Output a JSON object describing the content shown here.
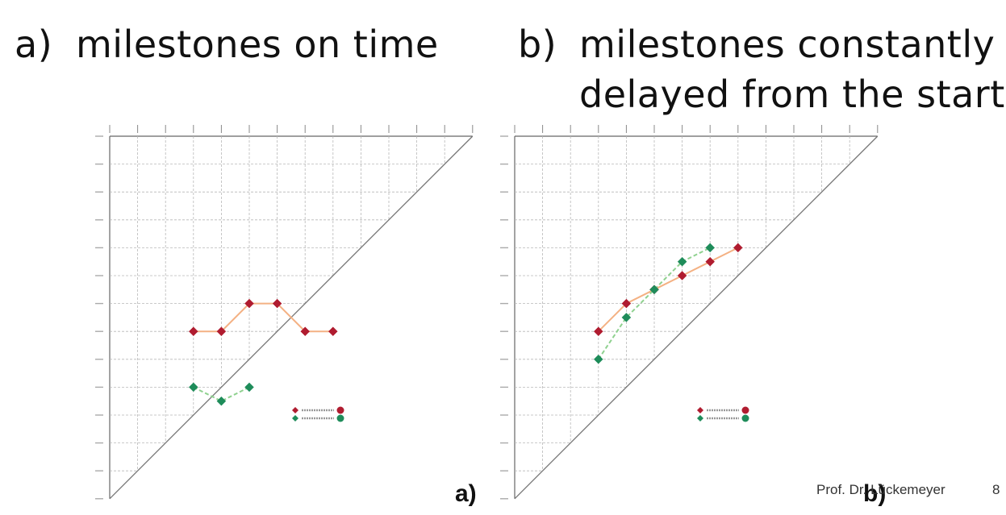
{
  "headings": {
    "a": {
      "label": "a)",
      "text": "milestones on time"
    },
    "b": {
      "label": "b)",
      "line1": "milestones constantly",
      "line2": "delayed from the start"
    }
  },
  "footer": {
    "author": "Prof. Dr. Lückemeyer",
    "page": "8"
  },
  "colors": {
    "milestone1": "#b01c30",
    "milestone1_line": "#f4b183",
    "milestone2": "#1e8c5a",
    "milestone2_line": "#8fd18f",
    "grid": "#b8b8b8",
    "diagonal": "#777777"
  },
  "chart_data": [
    {
      "type": "line",
      "panel_label": "a)",
      "chart_kind": "milestone trend analysis",
      "x": [
        1,
        2,
        3,
        4,
        5,
        6,
        7,
        8,
        9,
        10,
        11,
        12,
        13
      ],
      "y_levels": [
        1,
        2,
        3,
        4,
        5,
        6,
        7,
        8,
        9,
        10,
        11,
        12,
        13
      ],
      "series": [
        {
          "points": [
            [
              3,
              7
            ],
            [
              4,
              7
            ],
            [
              5,
              6
            ],
            [
              6,
              6
            ],
            [
              7,
              7
            ],
            [
              8,
              7
            ]
          ],
          "color": "milestone1",
          "marker": "diamond"
        },
        {
          "points": [
            [
              3,
              9
            ],
            [
              4,
              9.5
            ],
            [
              5,
              9
            ]
          ],
          "color": "milestone2",
          "marker": "diamond"
        }
      ],
      "grid": true,
      "legend_placement": "lower-right"
    },
    {
      "type": "line",
      "panel_label": "b)",
      "chart_kind": "milestone trend analysis",
      "x": [
        1,
        2,
        3,
        4,
        5,
        6,
        7,
        8,
        9,
        10,
        11,
        12,
        13
      ],
      "y_levels": [
        1,
        2,
        3,
        4,
        5,
        6,
        7,
        8,
        9,
        10,
        11,
        12,
        13
      ],
      "series": [
        {
          "points": [
            [
              3,
              7
            ],
            [
              4,
              6
            ],
            [
              5,
              5.5
            ],
            [
              6,
              5
            ],
            [
              7,
              4.5
            ],
            [
              8,
              4
            ]
          ],
          "color": "milestone1",
          "marker": "diamond"
        },
        {
          "points": [
            [
              3,
              8
            ],
            [
              4,
              6.5
            ],
            [
              5,
              5.5
            ],
            [
              6,
              4.5
            ],
            [
              7,
              4
            ]
          ],
          "color": "milestone2",
          "marker": "diamond"
        }
      ],
      "grid": true,
      "legend_placement": "lower-right"
    }
  ]
}
